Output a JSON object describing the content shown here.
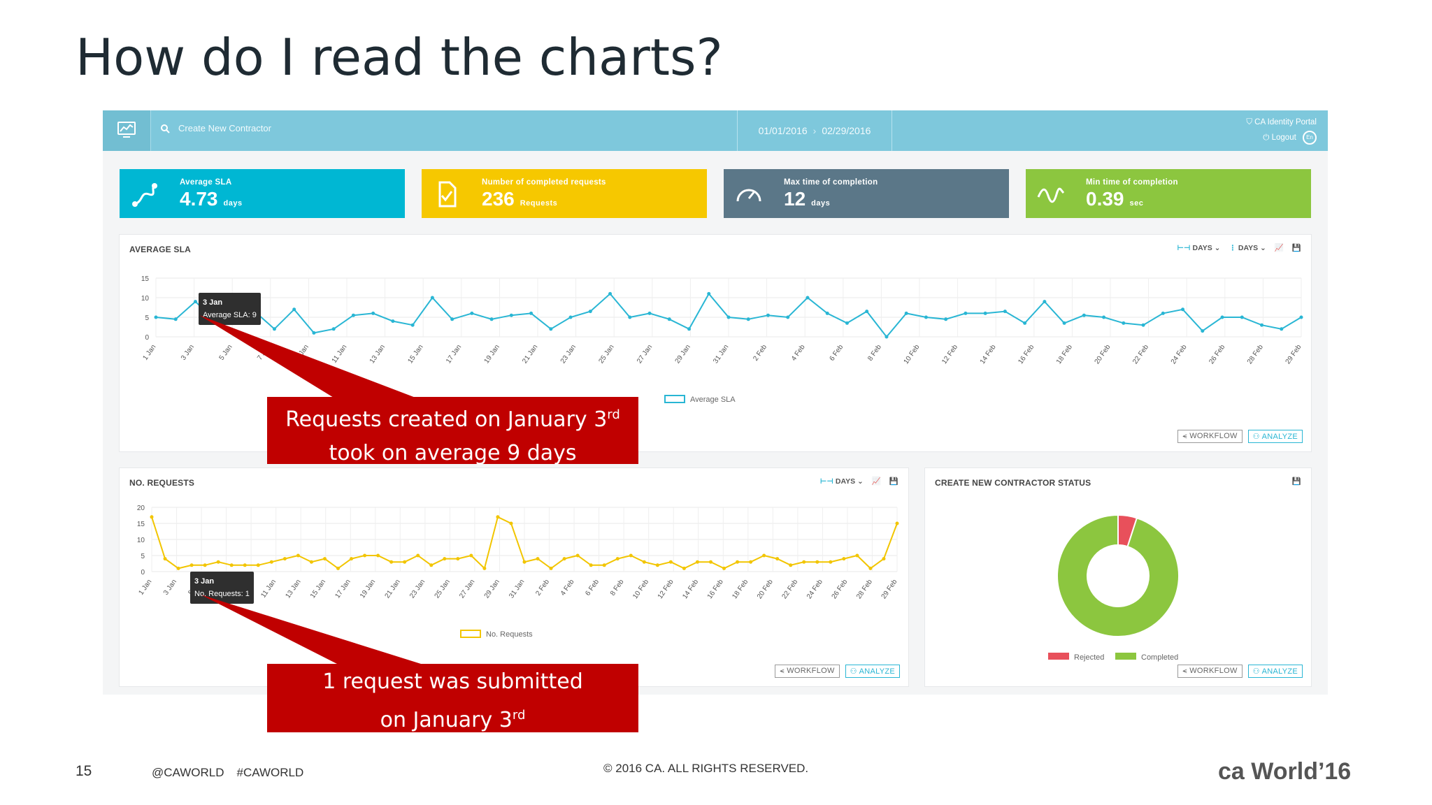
{
  "slide": {
    "title": "How do I read the charts?",
    "page_number": "15",
    "hashtags": [
      "@CAWORLD",
      "#CAWORLD"
    ],
    "copyright": "© 2016 CA. ALL RIGHTS RESERVED.",
    "logo_text": "ca World’16"
  },
  "topbar": {
    "search_placeholder": "Create New Contractor",
    "date_from": "01/01/2016",
    "date_to": "02/29/2016",
    "portal_name": "CA Identity Portal",
    "logout_label": "Logout"
  },
  "kpis": [
    {
      "label": "Average SLA",
      "value": "4.73",
      "unit": "days",
      "color": "#00b7d3"
    },
    {
      "label": "Number of completed requests",
      "value": "236",
      "unit": "Requests",
      "color": "#f6c800"
    },
    {
      "label": "Max time of completion",
      "value": "12",
      "unit": "days",
      "color": "#5b7788"
    },
    {
      "label": "Min time of completion",
      "value": "0.39",
      "unit": "sec",
      "color": "#8cc63f"
    }
  ],
  "panels": {
    "avg_sla": {
      "title": "AVERAGE SLA",
      "days1": "DAYS",
      "days2": "DAYS",
      "workflow": "WORKFLOW",
      "analyze": "ANALYZE"
    },
    "no_requests": {
      "title": "NO. REQUESTS",
      "days": "DAYS",
      "workflow": "WORKFLOW",
      "analyze": "ANALYZE"
    },
    "status": {
      "title": "CREATE NEW CONTRACTOR STATUS",
      "workflow": "WORKFLOW",
      "analyze": "ANALYZE"
    }
  },
  "tooltips": {
    "sla": {
      "date": "3 Jan",
      "text": "Average SLA: 9"
    },
    "req": {
      "date": "3 Jan",
      "text": "No. Requests: 1"
    }
  },
  "callouts": {
    "sla": {
      "line1": "Requests created on January 3",
      "sup1": "rd",
      "line2": "took on average 9 days"
    },
    "req": {
      "line1": "1 request was submitted",
      "line2": "on January 3",
      "sup2": "rd"
    }
  },
  "chart_data": [
    {
      "type": "line",
      "title": "AVERAGE SLA",
      "legend": "Average SLA",
      "ylim": [
        0,
        15
      ],
      "yticks": [
        0,
        5,
        10,
        15
      ],
      "color": "#29b6d4",
      "x_labels": [
        "1 Jan",
        "3 Jan",
        "5 Jan",
        "7 Jan",
        "9 Jan",
        "11 Jan",
        "13 Jan",
        "15 Jan",
        "17 Jan",
        "19 Jan",
        "21 Jan",
        "23 Jan",
        "25 Jan",
        "27 Jan",
        "29 Jan",
        "31 Jan",
        "2 Feb",
        "4 Feb",
        "6 Feb",
        "8 Feb",
        "10 Feb",
        "12 Feb",
        "14 Feb",
        "16 Feb",
        "18 Feb",
        "20 Feb",
        "22 Feb",
        "24 Feb",
        "26 Feb",
        "28 Feb",
        "29 Feb"
      ],
      "values": [
        5,
        4.5,
        9,
        4,
        5,
        6.5,
        2,
        7,
        1,
        2,
        5.5,
        6,
        4,
        3,
        10,
        4.5,
        6,
        4.5,
        5.5,
        6,
        2,
        5,
        6.5,
        11,
        5,
        6,
        4.5,
        2,
        11,
        5,
        4.5,
        5.5,
        5,
        10,
        6,
        3.5,
        6.5,
        0,
        6,
        5,
        4.5,
        6,
        6,
        6.5,
        3.5,
        9,
        3.5,
        5.5,
        5,
        3.5,
        3,
        6,
        7,
        1.5,
        5,
        5,
        3,
        2,
        5
      ]
    },
    {
      "type": "line",
      "title": "NO. REQUESTS",
      "legend": "No. Requests",
      "ylim": [
        0,
        20
      ],
      "yticks": [
        0,
        5,
        10,
        15,
        20
      ],
      "color": "#f2c500",
      "x_labels": [
        "1 Jan",
        "3 Jan",
        "5 Jan",
        "7 Jan",
        "9 Jan",
        "11 Jan",
        "13 Jan",
        "15 Jan",
        "17 Jan",
        "19 Jan",
        "21 Jan",
        "23 Jan",
        "25 Jan",
        "27 Jan",
        "29 Jan",
        "31 Jan",
        "2 Feb",
        "4 Feb",
        "6 Feb",
        "8 Feb",
        "10 Feb",
        "12 Feb",
        "14 Feb",
        "16 Feb",
        "18 Feb",
        "20 Feb",
        "22 Feb",
        "24 Feb",
        "26 Feb",
        "28 Feb",
        "29 Feb"
      ],
      "values": [
        17,
        4,
        1,
        2,
        2,
        3,
        2,
        2,
        2,
        3,
        4,
        5,
        3,
        4,
        1,
        4,
        5,
        5,
        3,
        3,
        5,
        2,
        4,
        4,
        5,
        1,
        17,
        15,
        3,
        4,
        1,
        4,
        5,
        2,
        2,
        4,
        5,
        3,
        2,
        3,
        1,
        3,
        3,
        1,
        3,
        3,
        5,
        4,
        2,
        3,
        3,
        3,
        4,
        5,
        1,
        4,
        15
      ]
    },
    {
      "type": "pie",
      "title": "CREATE NEW CONTRACTOR STATUS",
      "labels": [
        "Rejected",
        "Completed"
      ],
      "values": [
        5,
        95
      ],
      "colors": [
        "#e8505b",
        "#8cc63f"
      ],
      "donut": true
    }
  ]
}
